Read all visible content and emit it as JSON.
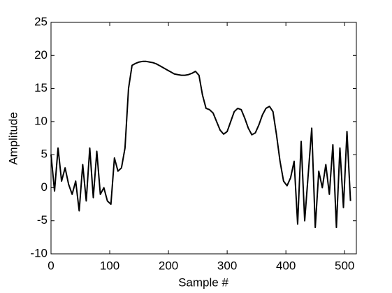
{
  "chart_data": {
    "type": "line",
    "x_label": "Sample #",
    "y_label": "Amplitude",
    "x": [
      0,
      6,
      12,
      18,
      24,
      30,
      36,
      42,
      48,
      54,
      60,
      66,
      72,
      78,
      84,
      90,
      96,
      102,
      108,
      114,
      120,
      126,
      132,
      138,
      144,
      150,
      156,
      162,
      168,
      174,
      180,
      186,
      192,
      198,
      204,
      210,
      216,
      222,
      228,
      234,
      240,
      246,
      252,
      258,
      264,
      270,
      276,
      282,
      288,
      294,
      300,
      306,
      312,
      318,
      324,
      330,
      336,
      342,
      348,
      354,
      360,
      366,
      372,
      378,
      384,
      390,
      396,
      402,
      408,
      414,
      420,
      426,
      432,
      438,
      444,
      450,
      456,
      462,
      468,
      474,
      480,
      486,
      492,
      498,
      504,
      510
    ],
    "series": [
      {
        "color": "#000000",
        "values": [
          5,
          -0.5,
          6,
          1,
          3,
          0.5,
          -1,
          1,
          -3.5,
          3.5,
          -2,
          6,
          -1.5,
          5.5,
          -1,
          0,
          -2,
          -2.5,
          4.5,
          2.5,
          3,
          6,
          15,
          18.5,
          18.8,
          19,
          19.1,
          19.1,
          19,
          18.9,
          18.7,
          18.4,
          18.1,
          17.8,
          17.5,
          17.2,
          17.1,
          17,
          17,
          17.1,
          17.3,
          17.6,
          17,
          14,
          12,
          11.8,
          11.3,
          10,
          8.7,
          8.1,
          8.5,
          10,
          11.5,
          12,
          11.8,
          10.5,
          9,
          8,
          8.3,
          9.5,
          11,
          12,
          12.3,
          11.5,
          8,
          4,
          1,
          0.3,
          1.5,
          4,
          -5.5,
          7,
          -5,
          2,
          9,
          -6,
          2.5,
          0,
          3.5,
          -1,
          6.5,
          -6,
          6,
          -3,
          8.5,
          -2
        ]
      }
    ],
    "xlim": [
      0,
      520
    ],
    "ylim": [
      -10,
      25
    ],
    "xticks": [
      0,
      100,
      200,
      300,
      400,
      500
    ],
    "yticks": [
      -10,
      -5,
      0,
      5,
      10,
      15,
      20,
      25
    ]
  }
}
